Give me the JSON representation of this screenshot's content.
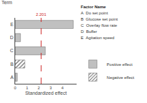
{
  "chart_data": {
    "type": "bar",
    "orientation": "horizontal",
    "title": "Term",
    "x_label": "Standardized effect",
    "categories": [
      "A",
      "B",
      "C",
      "D",
      "E"
    ],
    "series": [
      {
        "name": "Positive effect",
        "color": "#c0c0c0",
        "marker": "plain",
        "values": [
          0.18,
          null,
          2.55,
          0.45,
          4.92
        ]
      },
      {
        "name": "Negative effect",
        "color": "#c0c0c0",
        "marker": "hatched",
        "values": [
          null,
          0.82,
          null,
          null,
          null
        ]
      }
    ],
    "xlim": [
      0,
      5.2
    ],
    "xticks": [
      0,
      1,
      2,
      3,
      4
    ],
    "grid": false,
    "legend": "right",
    "annotations": [
      {
        "text": "2.201",
        "x": 2.201,
        "color": "#cc2222",
        "line_style": "dashed"
      },
      {
        "text": "Factor Name"
      },
      {
        "text": "A  Do set point"
      },
      {
        "text": "B  Glucose set point"
      },
      {
        "text": "C  Overlay flow rate"
      },
      {
        "text": "D  Buffer"
      },
      {
        "text": "E  Agitation speed"
      }
    ]
  }
}
